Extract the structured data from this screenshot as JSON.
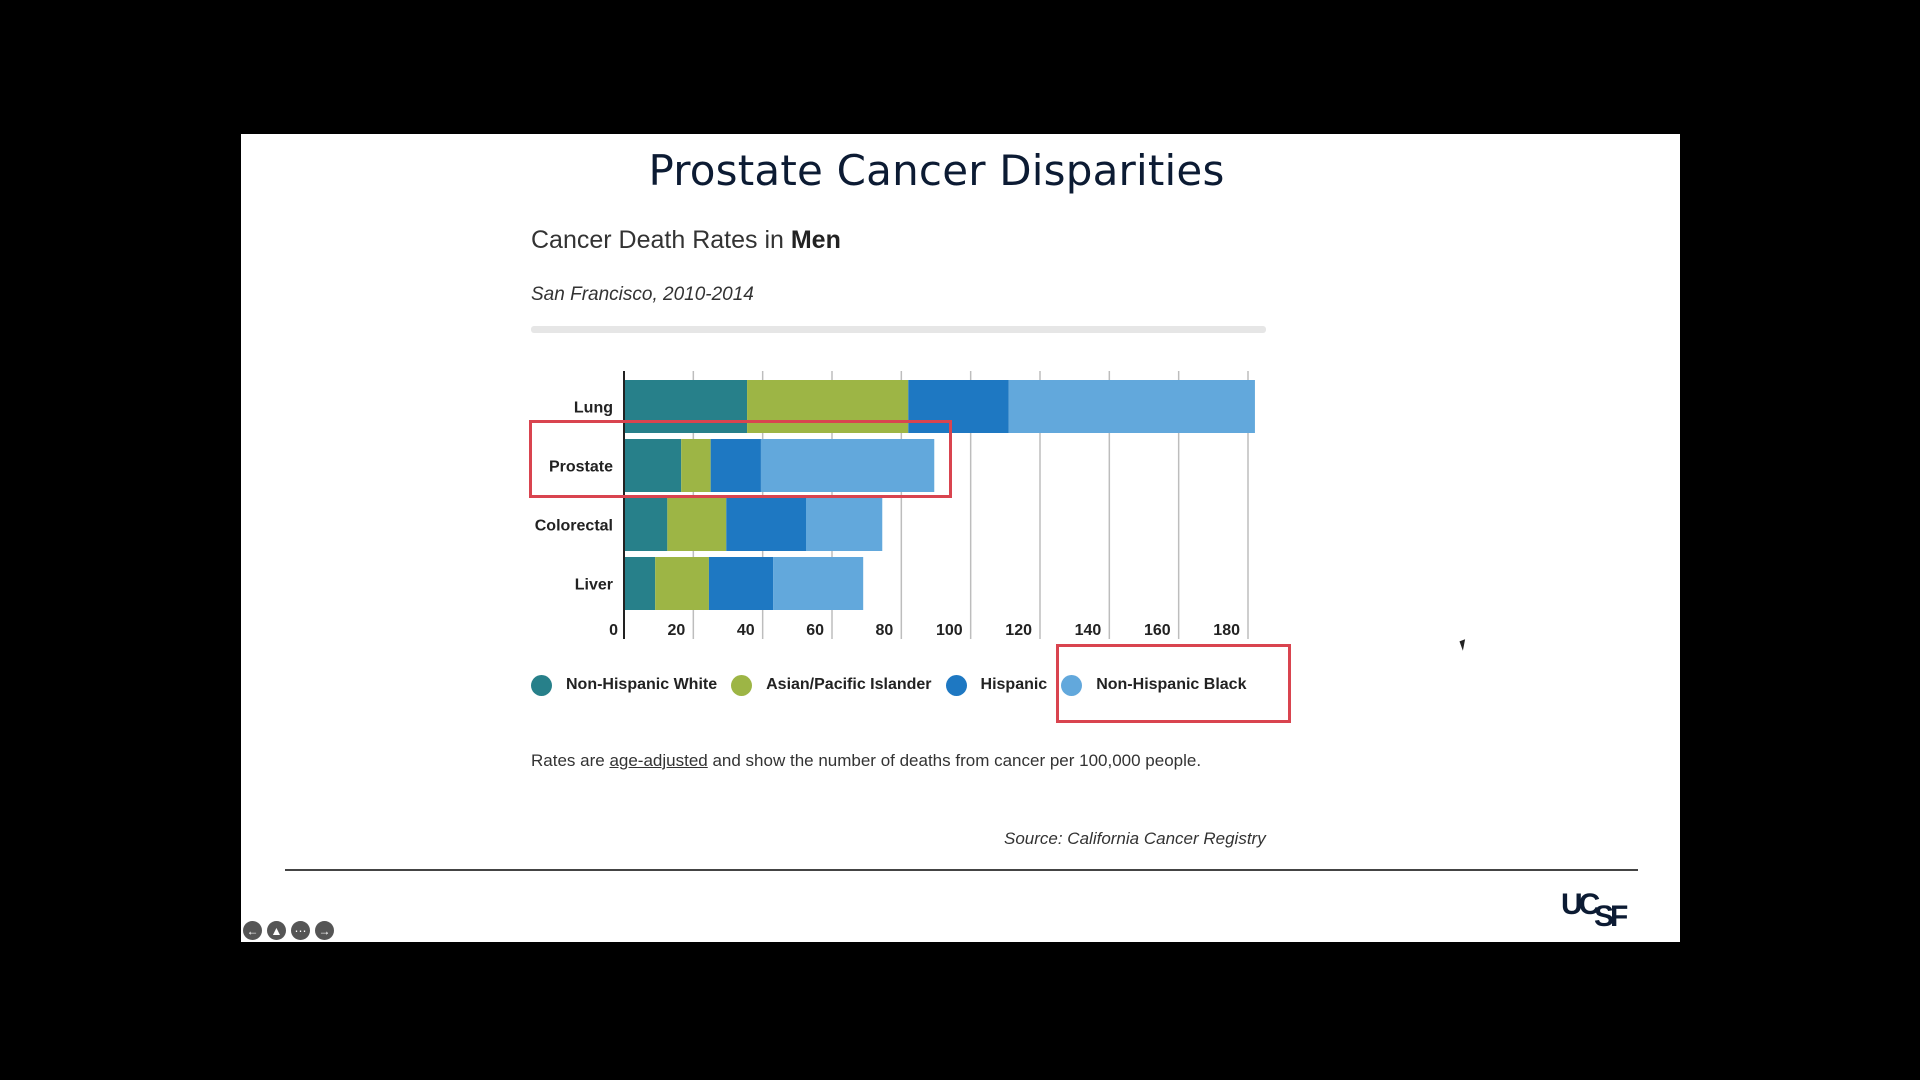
{
  "slide_title": "Prostate Cancer Disparities",
  "chart_title_prefix": "Cancer Death Rates in ",
  "chart_title_bold": "Men",
  "chart_subtitle": "San Francisco, 2010-2014",
  "note": {
    "before": "Rates are ",
    "link": "age-adjusted",
    "after": " and show the number of deaths from cancer per 100,000 people."
  },
  "source": "Source: California Cancer Registry",
  "logo_text": "UCSF",
  "nav_icons": [
    "back-arrow-icon",
    "pointer-icon",
    "more-icon",
    "forward-arrow-icon"
  ],
  "colors": {
    "non_hispanic_white": "#27808a",
    "asian_pacific_islander": "#9db545",
    "hispanic": "#1e78c2",
    "non_hispanic_black": "#62a8dc",
    "highlight": "#d9444f"
  },
  "chart_data": {
    "type": "bar",
    "orientation": "horizontal",
    "stacked": true,
    "title": "Cancer Death Rates in Men",
    "subtitle": "San Francisco, 2010-2014",
    "categories": [
      "Lung",
      "Prostate",
      "Colorectal",
      "Liver"
    ],
    "series": [
      {
        "name": "Non-Hispanic White",
        "color": "#27808a",
        "values": [
          35.5,
          16.5,
          12.5,
          9
        ]
      },
      {
        "name": "Asian/Pacific Islander",
        "color": "#9db545",
        "values": [
          46.5,
          8.5,
          17,
          15.5
        ]
      },
      {
        "name": "Hispanic",
        "color": "#1e78c2",
        "values": [
          29,
          14.5,
          23,
          18.5
        ]
      },
      {
        "name": "Non-Hispanic Black",
        "color": "#62a8dc",
        "values": [
          71,
          50,
          22,
          26
        ]
      }
    ],
    "xticks": [
      0,
      20,
      40,
      60,
      80,
      100,
      120,
      140,
      160,
      180
    ],
    "xlim": [
      0,
      180
    ],
    "grid": true,
    "legend": "bottom",
    "highlighted_category": "Prostate",
    "highlighted_series": "Non-Hispanic Black"
  }
}
